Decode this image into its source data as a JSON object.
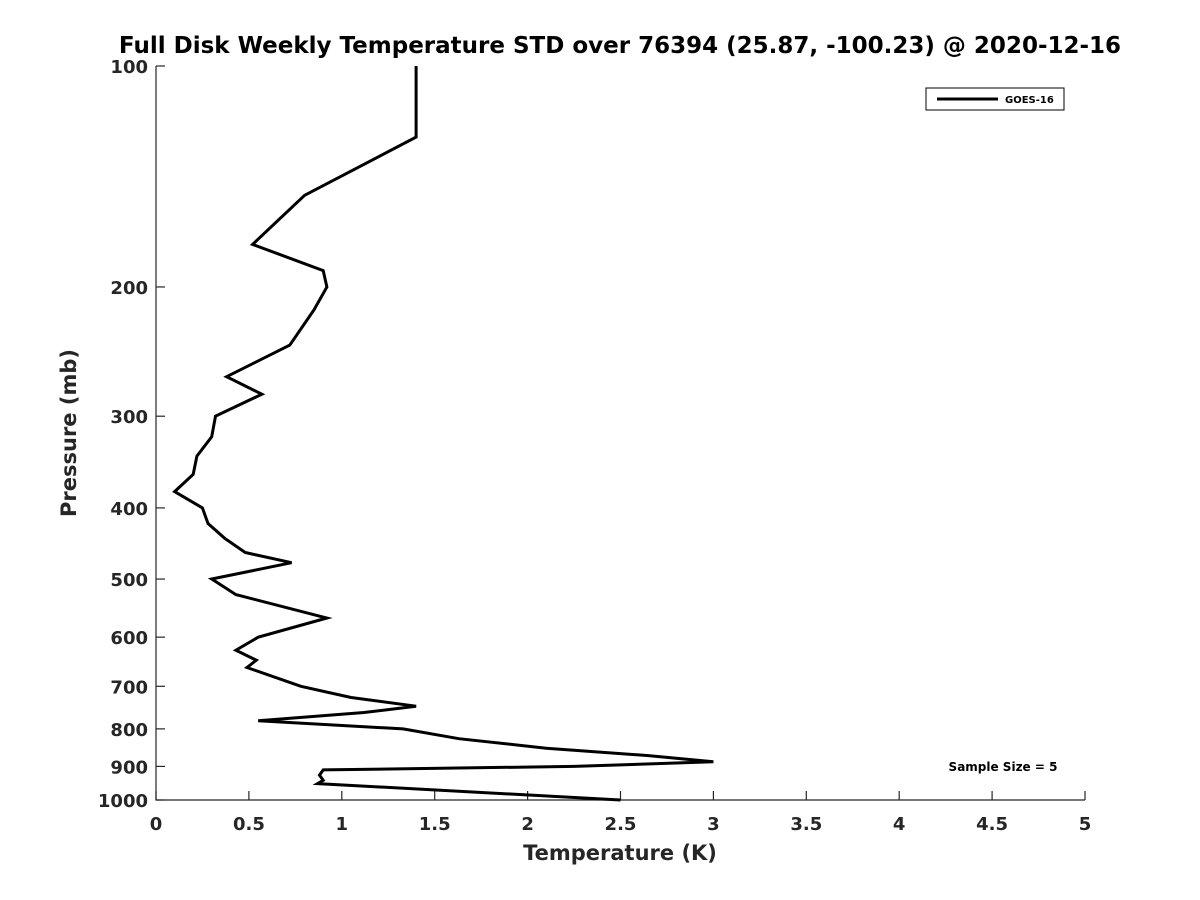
{
  "chart_data": {
    "type": "line",
    "title": "Full Disk Weekly Temperature STD over 76394 (25.87, -100.23) @ 2020-12-16",
    "xlabel": "Temperature (K)",
    "ylabel": "Pressure (mb)",
    "xlim": [
      0,
      5
    ],
    "ylim": [
      100,
      1000
    ],
    "yscale": "log",
    "y_reversed": true,
    "x_ticks": [
      0,
      0.5,
      1,
      1.5,
      2,
      2.5,
      3,
      3.5,
      4,
      4.5,
      5
    ],
    "x_tick_labels": [
      "0",
      "0.5",
      "1",
      "1.5",
      "2",
      "2.5",
      "3",
      "3.5",
      "4",
      "4.5",
      "5"
    ],
    "y_ticks": [
      100,
      200,
      300,
      400,
      500,
      600,
      700,
      800,
      900,
      1000
    ],
    "y_tick_labels": [
      "100",
      "200",
      "300",
      "400",
      "500",
      "600",
      "700",
      "800",
      "900",
      "1000"
    ],
    "legend_position": "top-right",
    "annotation": "Sample Size = 5",
    "series": [
      {
        "name": "GOES-16",
        "color": "#000000",
        "points": [
          [
            1.4,
            100
          ],
          [
            1.4,
            125
          ],
          [
            0.8,
            150
          ],
          [
            0.52,
            175
          ],
          [
            0.9,
            190
          ],
          [
            0.92,
            200
          ],
          [
            0.85,
            215
          ],
          [
            0.72,
            240
          ],
          [
            0.38,
            265
          ],
          [
            0.57,
            280
          ],
          [
            0.32,
            300
          ],
          [
            0.3,
            320
          ],
          [
            0.22,
            340
          ],
          [
            0.2,
            360
          ],
          [
            0.1,
            380
          ],
          [
            0.25,
            400
          ],
          [
            0.28,
            420
          ],
          [
            0.37,
            440
          ],
          [
            0.48,
            460
          ],
          [
            0.73,
            475
          ],
          [
            0.3,
            500
          ],
          [
            0.43,
            525
          ],
          [
            0.92,
            565
          ],
          [
            0.55,
            600
          ],
          [
            0.43,
            625
          ],
          [
            0.54,
            645
          ],
          [
            0.49,
            660
          ],
          [
            0.78,
            700
          ],
          [
            1.05,
            725
          ],
          [
            1.4,
            745
          ],
          [
            1.12,
            760
          ],
          [
            0.55,
            780
          ],
          [
            1.33,
            800
          ],
          [
            1.63,
            825
          ],
          [
            2.1,
            850
          ],
          [
            2.65,
            870
          ],
          [
            3.0,
            887
          ],
          [
            2.25,
            900
          ],
          [
            0.9,
            910
          ],
          [
            0.88,
            925
          ],
          [
            0.9,
            940
          ],
          [
            0.87,
            950
          ],
          [
            2.5,
            1000
          ]
        ]
      }
    ]
  }
}
